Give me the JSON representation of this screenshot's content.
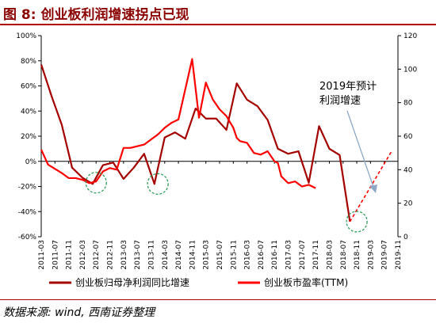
{
  "figure_title": "图 8:  创业板利润增速拐点已现",
  "source_note": "数据来源: wind, 西南证券整理",
  "colors": {
    "profit_series": "#a50000",
    "pe_series": "#ff0000",
    "forecast_line": "#ff0000",
    "arrow": "#8ea9c8",
    "circle": "#2e9e5b",
    "title_rule": "#b00000"
  },
  "chart_data": {
    "type": "line",
    "title": "",
    "x": [
      "2011-03",
      "2011-05",
      "2011-07",
      "2011-09",
      "2011-11",
      "2012-01",
      "2012-03",
      "2012-05",
      "2012-07",
      "2012-09",
      "2012-11",
      "2013-01",
      "2013-03",
      "2013-05",
      "2013-07",
      "2013-09",
      "2013-11",
      "2014-01",
      "2014-03",
      "2014-05",
      "2014-07",
      "2014-09",
      "2014-11",
      "2015-01",
      "2015-03",
      "2015-05",
      "2015-07",
      "2015-09",
      "2015-11",
      "2016-01",
      "2016-03",
      "2016-05",
      "2016-07",
      "2016-09",
      "2016-11",
      "2017-01",
      "2017-03",
      "2017-05",
      "2017-07",
      "2017-09",
      "2017-11",
      "2018-01",
      "2018-03",
      "2018-05",
      "2018-07",
      "2018-09",
      "2018-11",
      "2019-01",
      "2019-03",
      "2019-05",
      "2019-07",
      "2019-09",
      "2019-11"
    ],
    "x_tick_labels": [
      "2011-03",
      "2011-07",
      "2011-11",
      "2012-03",
      "2012-07",
      "2012-11",
      "2013-03",
      "2013-07",
      "2013-11",
      "2014-03",
      "2014-07",
      "2014-11",
      "2015-03",
      "2015-07",
      "2015-11",
      "2016-03",
      "2016-07",
      "2016-11",
      "2017-03",
      "2017-07",
      "2017-11",
      "2018-03",
      "2018-07",
      "2018-11",
      "2019-03",
      "2019-07",
      "2019-11"
    ],
    "y_left": {
      "min": -60,
      "max": 100,
      "step": 20,
      "unit": "%"
    },
    "y_right": {
      "min": 0,
      "max": 120,
      "step": 20
    },
    "series": [
      {
        "name": "创业板归母净利润同比增速",
        "axis": "left",
        "points": [
          [
            "2011-03",
            77
          ],
          [
            "2011-06",
            52
          ],
          [
            "2011-09",
            29
          ],
          [
            "2011-12",
            -5
          ],
          [
            "2012-03",
            -13
          ],
          [
            "2012-06",
            -18
          ],
          [
            "2012-09",
            -3
          ],
          [
            "2012-12",
            -1
          ],
          [
            "2013-03",
            -14
          ],
          [
            "2013-06",
            -5
          ],
          [
            "2013-09",
            6
          ],
          [
            "2013-12",
            -18
          ],
          [
            "2014-03",
            19
          ],
          [
            "2014-06",
            23
          ],
          [
            "2014-09",
            18
          ],
          [
            "2014-12",
            42
          ],
          [
            "2015-03",
            34
          ],
          [
            "2015-06",
            34
          ],
          [
            "2015-09",
            25
          ],
          [
            "2015-12",
            62
          ],
          [
            "2016-03",
            49
          ],
          [
            "2016-06",
            44
          ],
          [
            "2016-09",
            33
          ],
          [
            "2016-12",
            10
          ],
          [
            "2017-03",
            6
          ],
          [
            "2017-06",
            8
          ],
          [
            "2017-09",
            -17
          ],
          [
            "2017-12",
            28
          ],
          [
            "2018-03",
            10
          ],
          [
            "2018-06",
            5
          ],
          [
            "2018-09",
            -48
          ]
        ]
      },
      {
        "name": "创业板市盈率(TTM)",
        "axis": "right",
        "points": [
          [
            "2011-03",
            52
          ],
          [
            "2011-05",
            43
          ],
          [
            "2011-09",
            38
          ],
          [
            "2011-11",
            35
          ],
          [
            "2012-01",
            35
          ],
          [
            "2012-03",
            34
          ],
          [
            "2012-05",
            32
          ],
          [
            "2012-07",
            33
          ],
          [
            "2012-09",
            39
          ],
          [
            "2012-11",
            41
          ],
          [
            "2013-01",
            40
          ],
          [
            "2013-03",
            53
          ],
          [
            "2013-05",
            53
          ],
          [
            "2013-07",
            54
          ],
          [
            "2013-09",
            55
          ],
          [
            "2013-11",
            58
          ],
          [
            "2014-01",
            61
          ],
          [
            "2014-03",
            65
          ],
          [
            "2014-05",
            68
          ],
          [
            "2014-07",
            70
          ],
          [
            "2014-09",
            88
          ],
          [
            "2014-11",
            106
          ],
          [
            "2015-01",
            71
          ],
          [
            "2015-03",
            92
          ],
          [
            "2015-05",
            82
          ],
          [
            "2015-07",
            76
          ],
          [
            "2015-09",
            72
          ],
          [
            "2015-11",
            65
          ],
          [
            "2015-12",
            59
          ],
          [
            "2016-01",
            57
          ],
          [
            "2016-03",
            56
          ],
          [
            "2016-05",
            50
          ],
          [
            "2016-07",
            49
          ],
          [
            "2016-09",
            51
          ],
          [
            "2016-11",
            45
          ],
          [
            "2016-12",
            44
          ],
          [
            "2017-01",
            36
          ],
          [
            "2017-03",
            32
          ],
          [
            "2017-05",
            33
          ],
          [
            "2017-07",
            30
          ],
          [
            "2017-09",
            31
          ],
          [
            "2017-11",
            29
          ]
        ]
      }
    ],
    "annotations": [
      {
        "text": [
          "2019年预计",
          "利润增速"
        ]
      }
    ],
    "legend": {
      "position": "bottom"
    },
    "grid": false
  }
}
